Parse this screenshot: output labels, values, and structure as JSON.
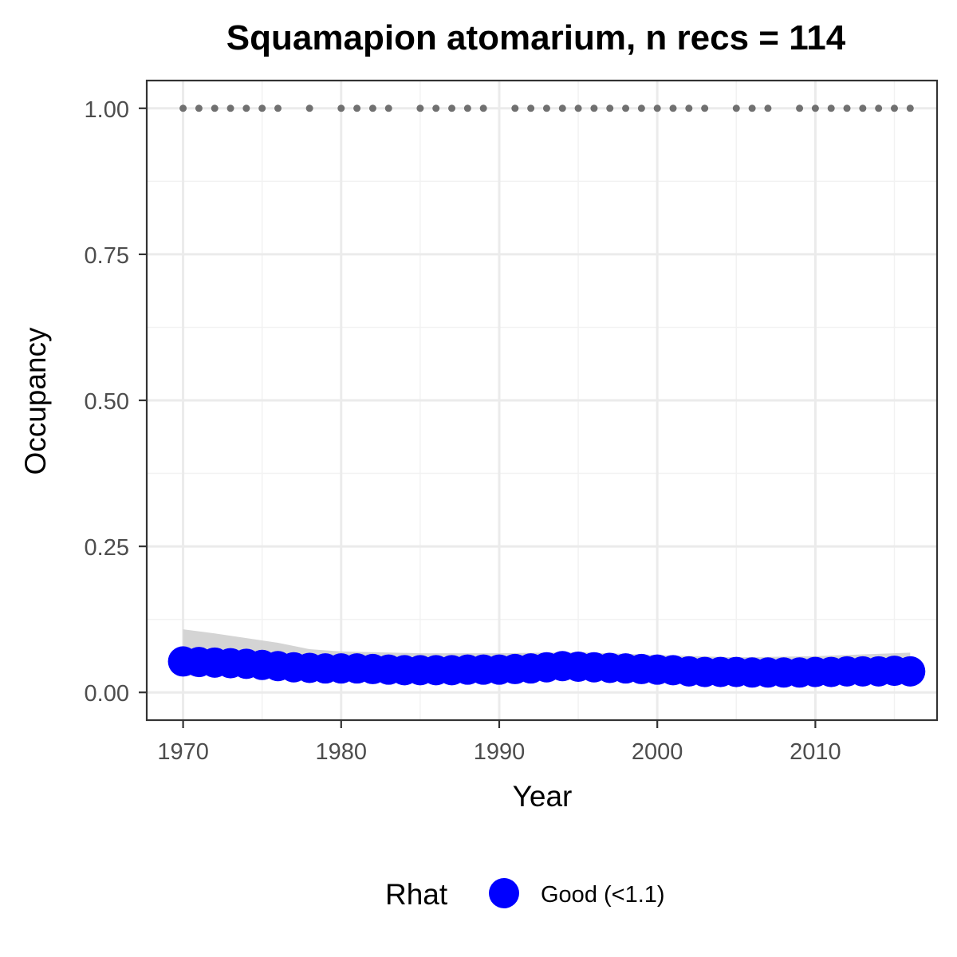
{
  "chart_data": {
    "type": "line",
    "title": "Squamapion atomarium, n recs = 114",
    "xlabel": "Year",
    "ylabel": "Occupancy",
    "xlim": [
      1967.7,
      2017.7
    ],
    "ylim": [
      -0.0475,
      1.0475
    ],
    "x_ticks": [
      1970,
      1980,
      1990,
      2000,
      2010
    ],
    "y_ticks": [
      0,
      0.25,
      0.5,
      0.75,
      1
    ],
    "x_tick_labels": [
      "1970",
      "1980",
      "1990",
      "2000",
      "2010"
    ],
    "y_tick_labels": [
      "0.00",
      "0.25",
      "0.50",
      "0.75",
      "1.00"
    ],
    "grid": true,
    "legend": {
      "title": "Rhat",
      "position": "bottom",
      "entries": [
        {
          "label": "Good (<1.1)",
          "color": "#0000ff"
        }
      ]
    },
    "series": [
      {
        "name": "Good (<1.1)",
        "color": "#0000ff",
        "years": [
          1970,
          1971,
          1972,
          1973,
          1974,
          1975,
          1976,
          1977,
          1978,
          1979,
          1980,
          1981,
          1982,
          1983,
          1984,
          1985,
          1986,
          1987,
          1988,
          1989,
          1990,
          1991,
          1992,
          1993,
          1994,
          1995,
          1996,
          1997,
          1998,
          1999,
          2000,
          2001,
          2002,
          2003,
          2004,
          2005,
          2006,
          2007,
          2008,
          2009,
          2010,
          2011,
          2012,
          2013,
          2014,
          2015,
          2016
        ],
        "values": [
          0.053,
          0.052,
          0.051,
          0.05,
          0.049,
          0.047,
          0.045,
          0.043,
          0.042,
          0.041,
          0.041,
          0.041,
          0.04,
          0.039,
          0.038,
          0.038,
          0.038,
          0.038,
          0.039,
          0.039,
          0.039,
          0.04,
          0.041,
          0.043,
          0.045,
          0.044,
          0.043,
          0.042,
          0.041,
          0.04,
          0.039,
          0.038,
          0.036,
          0.035,
          0.035,
          0.035,
          0.034,
          0.034,
          0.034,
          0.034,
          0.035,
          0.035,
          0.036,
          0.036,
          0.036,
          0.037,
          0.036
        ]
      }
    ],
    "credible_interval": {
      "color": "#cccccc",
      "years": [
        1970,
        1972,
        1974,
        1976,
        1978,
        1980,
        1985,
        1990,
        1995,
        2000,
        2005,
        2010,
        2016
      ],
      "lower": [
        0.028,
        0.03,
        0.031,
        0.031,
        0.031,
        0.03,
        0.029,
        0.029,
        0.031,
        0.029,
        0.026,
        0.026,
        0.027
      ],
      "upper": [
        0.108,
        0.101,
        0.093,
        0.085,
        0.074,
        0.07,
        0.067,
        0.067,
        0.069,
        0.064,
        0.06,
        0.062,
        0.068
      ]
    },
    "records": {
      "color": "#707070",
      "y": 1,
      "years": [
        1970,
        1971,
        1972,
        1973,
        1974,
        1975,
        1976,
        1978,
        1980,
        1981,
        1982,
        1983,
        1985,
        1986,
        1987,
        1988,
        1989,
        1991,
        1992,
        1993,
        1994,
        1995,
        1996,
        1997,
        1998,
        1999,
        2000,
        2001,
        2002,
        2003,
        2005,
        2006,
        2007,
        2009,
        2010,
        2011,
        2012,
        2013,
        2014,
        2015,
        2016
      ]
    }
  }
}
